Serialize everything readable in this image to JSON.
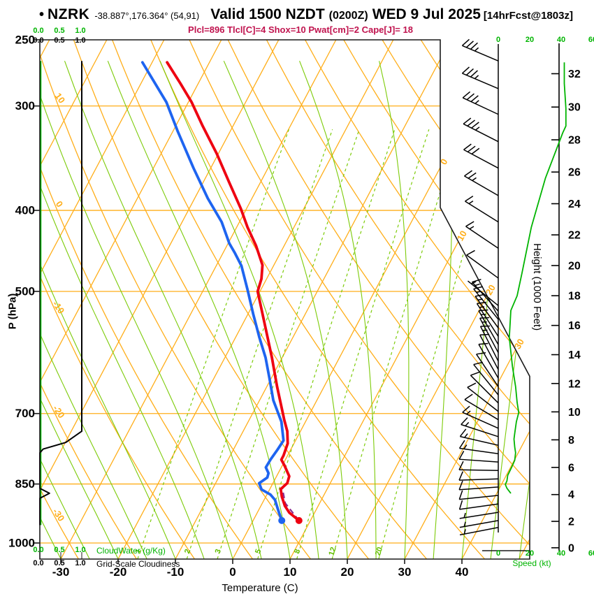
{
  "title": {
    "bullet": "•",
    "station": "NZRK",
    "coords": "-38.887°,176.364° (54,91)",
    "valid": "Valid 1500 NZDT",
    "zulu": "(0200Z)",
    "date": "WED 9 Jul 2025",
    "fcst": "[14hrFcst@1803z]"
  },
  "subtitle": "Plcl=896 Tlcl[C]=4 Shox=10 Pwat[cm]=2 Cape[J]= 18",
  "axes": {
    "pressure_label": "P (hPa)",
    "pressure_ticks": [
      250,
      300,
      400,
      500,
      700,
      850,
      1000
    ],
    "temp_label": "Temperature (C)",
    "temp_ticks": [
      -30,
      -20,
      -10,
      0,
      10,
      20,
      30,
      40
    ],
    "height_label": "Height (1000 Feet)",
    "height_ticks": [
      0,
      2,
      4,
      6,
      8,
      10,
      12,
      14,
      16,
      18,
      20,
      22,
      24,
      26,
      28,
      30,
      32
    ],
    "speed_label": "Speed (kt)",
    "speed_ticks": [
      "0",
      "20",
      "40",
      "60"
    ],
    "cloud_scale": [
      "0.0",
      "0.5",
      "1.0"
    ],
    "cloudwater_label": "CloudWater (g/Kg)",
    "cloudiness_label": "Grid-Scale Cloudiness"
  },
  "colors": {
    "orange": "#FFAE19",
    "green_line": "#7CCB08",
    "green_label": "#62BE00",
    "green_bright": "#00B400",
    "red": "#EE0011",
    "blue": "#1E64F0",
    "purple": "#8B2A8F",
    "crimson": "#C0134E",
    "frame": "#1A1A1A"
  },
  "chart_data": {
    "type": "skewt-logp",
    "pressure_range_hpa": [
      1045,
      250
    ],
    "isobars_hpa": [
      300,
      400,
      500,
      700,
      850,
      1000
    ],
    "isotherms_c": [
      -80,
      -70,
      -60,
      -50,
      -40,
      -30,
      -20,
      -10,
      0,
      10,
      20,
      30,
      40,
      50
    ],
    "isotherm_labels_c": [
      0,
      10,
      20,
      30
    ],
    "dry_adiabats_c": [
      -40,
      -30,
      -20,
      -10,
      0,
      10,
      20,
      30,
      40,
      50,
      60,
      70,
      80,
      90,
      100,
      110,
      120
    ],
    "adiabat_labels_c": [
      -30,
      -20,
      -10,
      0,
      10
    ],
    "moist_adiabats_c": [
      -30,
      -25,
      -20,
      -15,
      -10,
      -5,
      0,
      5,
      10,
      15,
      20,
      25,
      30,
      35,
      40,
      45,
      50
    ],
    "mixing_ratio_g_kg": [
      1,
      2,
      3,
      5,
      8,
      12,
      20
    ],
    "surface": {
      "pressure_hpa": 940,
      "temp_c": 8,
      "dewpoint_c": 5
    },
    "temperature_profile": [
      [
        266,
        -57.4
      ],
      [
        282,
        -53.1
      ],
      [
        297,
        -49.4
      ],
      [
        317,
        -45.3
      ],
      [
        342,
        -40.3
      ],
      [
        370,
        -35.5
      ],
      [
        398,
        -31.0
      ],
      [
        419,
        -28.1
      ],
      [
        441,
        -24.9
      ],
      [
        465,
        -22.0
      ],
      [
        483,
        -20.9
      ],
      [
        500,
        -20.4
      ],
      [
        550,
        -15.9
      ],
      [
        600,
        -11.8
      ],
      [
        650,
        -8.2
      ],
      [
        700,
        -4.7
      ],
      [
        712,
        -3.9
      ],
      [
        735,
        -2.3
      ],
      [
        760,
        -1.1
      ],
      [
        786,
        -0.7
      ],
      [
        795,
        -0.7
      ],
      [
        808,
        0.4
      ],
      [
        832,
        2.2
      ],
      [
        848,
        2.5
      ],
      [
        862,
        1.9
      ],
      [
        880,
        2.8
      ],
      [
        903,
        4.2
      ],
      [
        920,
        5.6
      ],
      [
        940,
        8.0
      ]
    ],
    "dewpoint_profile": [
      [
        266,
        -61.7
      ],
      [
        297,
        -53.8
      ],
      [
        322,
        -49.1
      ],
      [
        356,
        -43.0
      ],
      [
        387,
        -37.7
      ],
      [
        413,
        -33.1
      ],
      [
        438,
        -29.8
      ],
      [
        450,
        -27.9
      ],
      [
        466,
        -25.6
      ],
      [
        498,
        -22.3
      ],
      [
        532,
        -19.1
      ],
      [
        567,
        -15.9
      ],
      [
        600,
        -12.9
      ],
      [
        634,
        -10.4
      ],
      [
        675,
        -7.6
      ],
      [
        716,
        -4.2
      ],
      [
        754,
        -2.1
      ],
      [
        773,
        -2.3
      ],
      [
        794,
        -2.6
      ],
      [
        812,
        -2.7
      ],
      [
        825,
        -1.7
      ],
      [
        835,
        -1.5
      ],
      [
        848,
        -2.4
      ],
      [
        863,
        -1.4
      ],
      [
        875,
        0.6
      ],
      [
        888,
        1.9
      ],
      [
        903,
        2.8
      ],
      [
        920,
        3.8
      ],
      [
        940,
        5.0
      ]
    ],
    "parcel_path": [
      [
        940,
        8
      ],
      [
        896,
        4
      ],
      [
        858,
        2
      ]
    ],
    "cloudwater_profile": [
      [
        265,
        0
      ],
      [
        952,
        0
      ]
    ],
    "cloudiness_profile": [
      [
        265,
        1
      ],
      [
        735,
        1
      ],
      [
        758,
        0.62
      ],
      [
        772,
        0.08
      ],
      [
        780,
        0
      ],
      [
        860,
        0
      ],
      [
        872,
        0.23
      ],
      [
        884,
        0
      ],
      [
        952,
        0
      ]
    ],
    "wind_barbs_p_dir_kt": [
      [
        265,
        293,
        35
      ],
      [
        286,
        293,
        35
      ],
      [
        307,
        295,
        35
      ],
      [
        331,
        297,
        35
      ],
      [
        356,
        298,
        30
      ],
      [
        384,
        300,
        25
      ],
      [
        413,
        302,
        15
      ],
      [
        444,
        304,
        15
      ],
      [
        482,
        306,
        10
      ],
      [
        520,
        309,
        8
      ],
      [
        528,
        318,
        15
      ],
      [
        540,
        321,
        15
      ],
      [
        553,
        324,
        15
      ],
      [
        566,
        327,
        15
      ],
      [
        579,
        330,
        15
      ],
      [
        592,
        332,
        15
      ],
      [
        606,
        333,
        15
      ],
      [
        620,
        332,
        10
      ],
      [
        635,
        330,
        10
      ],
      [
        650,
        326,
        10
      ],
      [
        665,
        321,
        10
      ],
      [
        680,
        315,
        10
      ],
      [
        696,
        308,
        10
      ],
      [
        712,
        301,
        10
      ],
      [
        729,
        294,
        15
      ],
      [
        746,
        288,
        15
      ],
      [
        764,
        283,
        15
      ],
      [
        782,
        278,
        15
      ],
      [
        800,
        274,
        10
      ],
      [
        819,
        271,
        10
      ],
      [
        838,
        268,
        10
      ],
      [
        857,
        266,
        10
      ],
      [
        877,
        264,
        10
      ],
      [
        898,
        262,
        10
      ],
      [
        919,
        261,
        5
      ],
      [
        940,
        260,
        5
      ],
      [
        958,
        259,
        5
      ]
    ],
    "wind_speed_profile_p_kt": [
      [
        266,
        42
      ],
      [
        282,
        42
      ],
      [
        302,
        43
      ],
      [
        317,
        43
      ],
      [
        323,
        41
      ],
      [
        366,
        30
      ],
      [
        419,
        21
      ],
      [
        476,
        15
      ],
      [
        506,
        12
      ],
      [
        527,
        8
      ],
      [
        568,
        7
      ],
      [
        615,
        9
      ],
      [
        650,
        11
      ],
      [
        679,
        12
      ],
      [
        698,
        13
      ],
      [
        716,
        11.5
      ],
      [
        739,
        10.5
      ],
      [
        751,
        10
      ],
      [
        768,
        10.5
      ],
      [
        780,
        11
      ],
      [
        796,
        10.5
      ],
      [
        812,
        8.5
      ],
      [
        830,
        6
      ],
      [
        843,
        5.5
      ],
      [
        851,
        4.5
      ],
      [
        860,
        5.5
      ],
      [
        872,
        8
      ]
    ],
    "indices": {
      "Plcl": 896,
      "Tlcl_C": 4,
      "Shox": 10,
      "Pwat_cm": 2,
      "Cape_J": 18
    }
  }
}
